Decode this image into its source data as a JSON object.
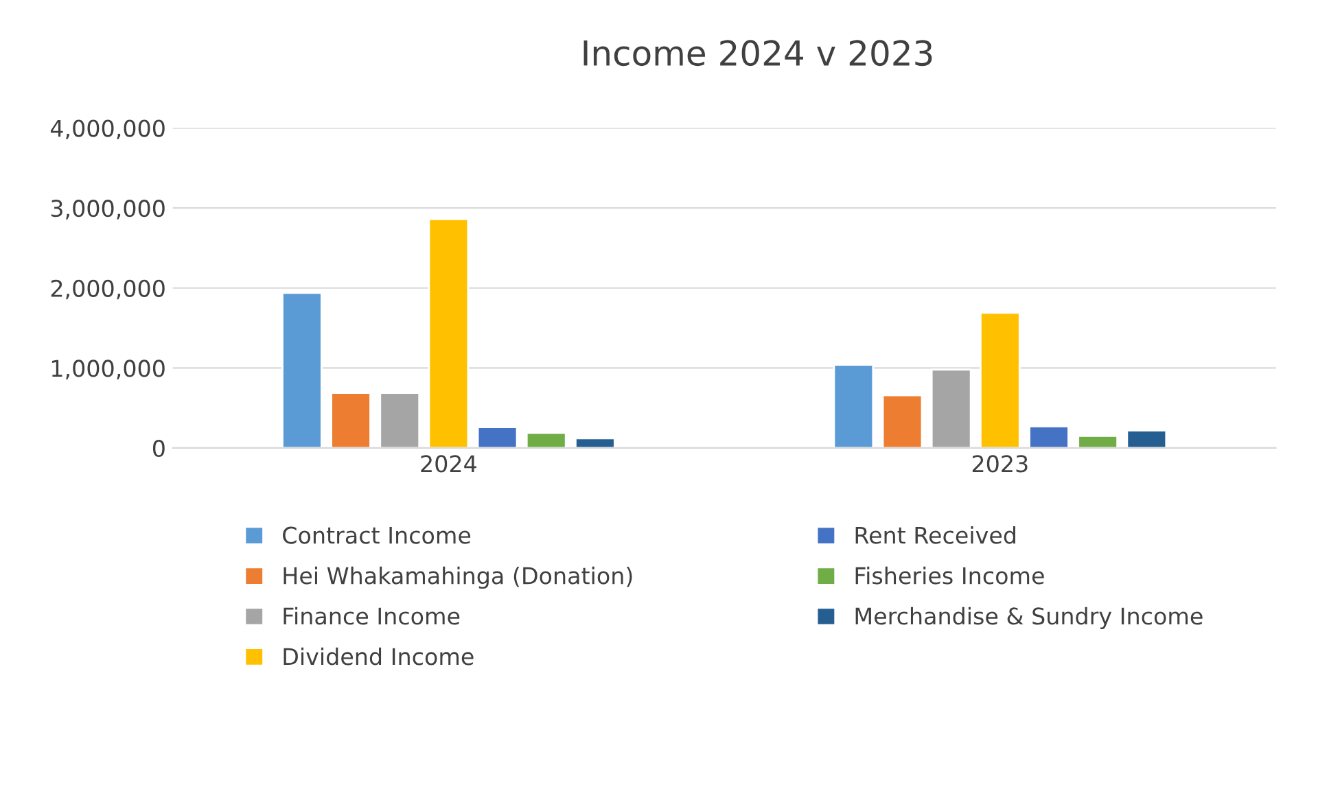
{
  "chart_data": {
    "type": "bar",
    "title": "Income 2024 v 2023",
    "categories": [
      "2024",
      "2023"
    ],
    "series": [
      {
        "name": "Contract Income",
        "color": "#5b9bd5",
        "values": [
          1940000,
          1040000
        ]
      },
      {
        "name": "Hei Whakamahinga (Donation)",
        "color": "#ed7d31",
        "values": [
          690000,
          660000
        ]
      },
      {
        "name": "Finance Income",
        "color": "#a5a5a5",
        "values": [
          690000,
          980000
        ]
      },
      {
        "name": "Dividend Income",
        "color": "#ffc000",
        "values": [
          2860000,
          1690000
        ]
      },
      {
        "name": "Rent Received",
        "color": "#4472c4",
        "values": [
          260000,
          270000
        ]
      },
      {
        "name": "Fisheries Income",
        "color": "#70ad47",
        "values": [
          190000,
          150000
        ]
      },
      {
        "name": "Merchandise & Sundry Income",
        "color": "#255e91",
        "values": [
          120000,
          220000
        ]
      }
    ],
    "ylim": [
      0,
      4000000
    ],
    "yticks": [
      {
        "value": 0,
        "label": "0"
      },
      {
        "value": 1000000,
        "label": "1,000,000"
      },
      {
        "value": 2000000,
        "label": "2,000,000"
      },
      {
        "value": 3000000,
        "label": "3,000,000"
      },
      {
        "value": 4000000,
        "label": "4,000,000"
      }
    ],
    "grid": "y",
    "legend": "bottom"
  }
}
